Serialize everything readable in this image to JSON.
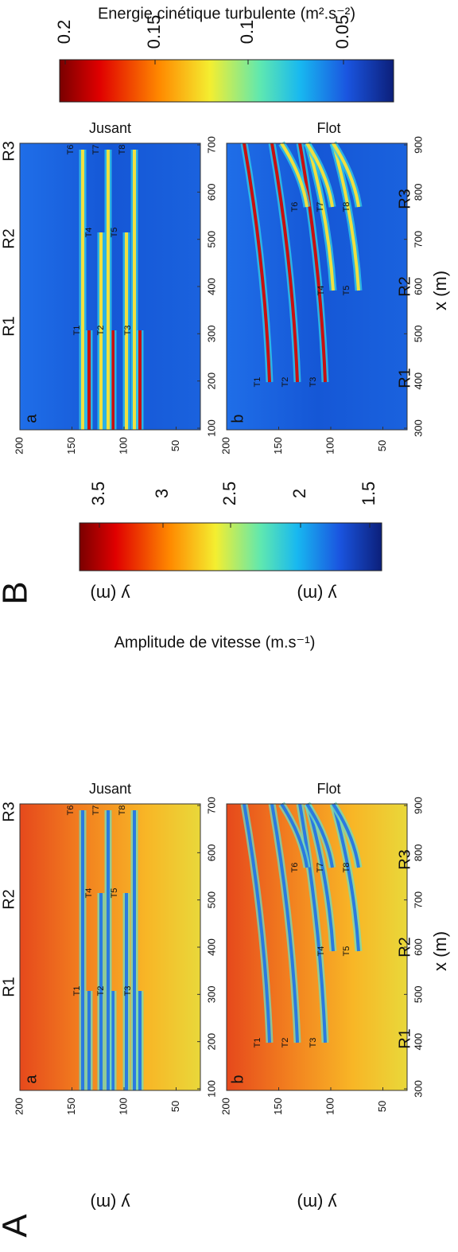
{
  "panels": [
    {
      "label": "A",
      "colorbar": {
        "title": "Amplitude de vitesse (m.s⁻¹)",
        "ticks": [
          "3.5",
          "3",
          "2.5",
          "2",
          "1.5"
        ]
      },
      "subplots": [
        {
          "letter": "a",
          "title": "Jusant",
          "y_label": "y (m)",
          "x_ticks": [
            "100",
            "200",
            "300",
            "400",
            "500",
            "600",
            "700"
          ],
          "y_ticks": [
            "200",
            "150",
            "100",
            "50"
          ],
          "regions": [
            "R1",
            "R2",
            "R3"
          ],
          "turbines": [
            "T1",
            "T2",
            "T3",
            "T4",
            "T5",
            "T6",
            "T7",
            "T8"
          ]
        },
        {
          "letter": "b",
          "title": "Flot",
          "y_label": "y (m)",
          "x_label": "x (m)",
          "x_ticks": [
            "300",
            "400",
            "500",
            "600",
            "700",
            "800",
            "900"
          ],
          "y_ticks": [
            "200",
            "150",
            "100",
            "50"
          ],
          "regions": [
            "R1",
            "R2",
            "R3"
          ],
          "turbines": [
            "T1",
            "T2",
            "T3",
            "T4",
            "T5",
            "T6",
            "T7",
            "T8"
          ]
        }
      ]
    },
    {
      "label": "B",
      "colorbar": {
        "title": "Energie cinétique turbulente (m².s⁻²)",
        "ticks": [
          "0.2",
          "0.15",
          "0.1",
          "0.05"
        ]
      },
      "subplots": [
        {
          "letter": "a",
          "title": "Jusant",
          "y_label": "y (m)",
          "x_ticks": [
            "100",
            "200",
            "300",
            "400",
            "500",
            "600",
            "700"
          ],
          "y_ticks": [
            "200",
            "150",
            "100",
            "50"
          ],
          "regions": [
            "R1",
            "R2",
            "R3"
          ],
          "turbines": [
            "T1",
            "T2",
            "T3",
            "T4",
            "T5",
            "T6",
            "T7",
            "T8"
          ]
        },
        {
          "letter": "b",
          "title": "Flot",
          "y_label": "y (m)",
          "x_label": "x (m)",
          "x_ticks": [
            "300",
            "400",
            "500",
            "600",
            "700",
            "800",
            "900"
          ],
          "y_ticks": [
            "200",
            "150",
            "100",
            "50"
          ],
          "regions": [
            "R1",
            "R2",
            "R3"
          ],
          "turbines": [
            "T1",
            "T2",
            "T3",
            "T4",
            "T5",
            "T6",
            "T7",
            "T8"
          ]
        }
      ]
    }
  ]
}
